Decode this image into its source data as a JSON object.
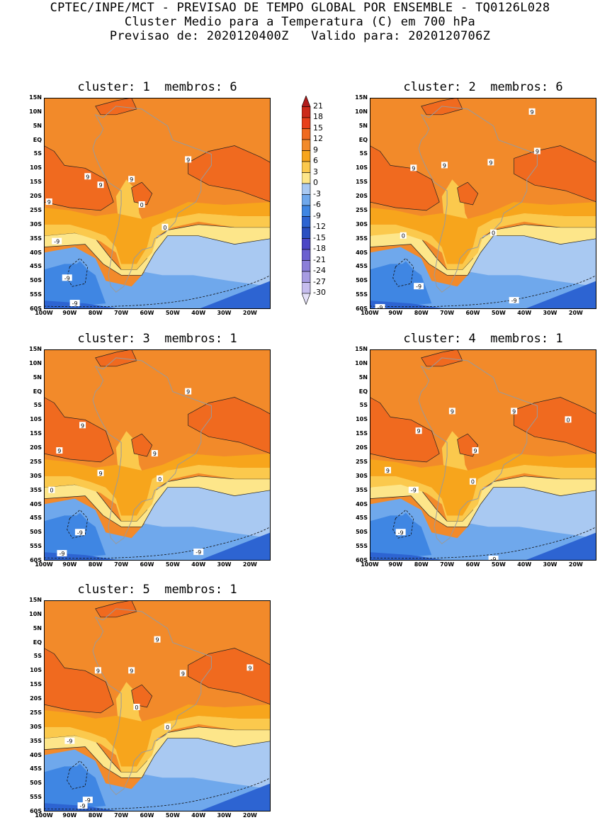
{
  "header": {
    "line1": "CPTEC/INPE/MCT - PREVISAO DE TEMPO GLOBAL POR ENSEMBLE - TQ0126L028",
    "line2": "Cluster Medio para a Temperatura (C) em 700 hPa",
    "line3": "Previsao de: 2020120400Z   Valido para: 2020120706Z"
  },
  "axes": {
    "lat_labels": [
      "15N",
      "10N",
      "5N",
      "EQ",
      "5S",
      "10S",
      "15S",
      "20S",
      "25S",
      "30S",
      "35S",
      "40S",
      "45S",
      "50S",
      "55S",
      "60S"
    ],
    "lon_labels": [
      "100W",
      "90W",
      "80W",
      "70W",
      "60W",
      "50W",
      "40W",
      "30W",
      "20W"
    ]
  },
  "colorbar": {
    "labels": [
      "21",
      "18",
      "15",
      "12",
      "9",
      "6",
      "3",
      "0",
      "-3",
      "-6",
      "-9",
      "-12",
      "-15",
      "-18",
      "-21",
      "-24",
      "-27",
      "-30"
    ],
    "colors": [
      "#b11c1c",
      "#cc2a1a",
      "#e8401a",
      "#f06a1f",
      "#f28a2a",
      "#f7a51c",
      "#fbc94d",
      "#fde68a",
      "#a9c9f2",
      "#6fa8ec",
      "#3f86e3",
      "#2d64d2",
      "#2a4fc2",
      "#4b46c6",
      "#6b5fd0",
      "#8b7ed9",
      "#a79ce2",
      "#c6bdee",
      "#e4e0f7"
    ]
  },
  "panels": [
    {
      "title": "cluster: 1  membros: 6",
      "labels": [
        "9",
        "9",
        "9",
        "9",
        "9",
        "0",
        "0",
        "-9",
        "-9",
        "-9"
      ]
    },
    {
      "title": "cluster: 2  membros: 6",
      "labels": [
        "9",
        "9",
        "9",
        "9",
        "9",
        "0",
        "0",
        "-9",
        "-9",
        "-9"
      ]
    },
    {
      "title": "cluster: 3  membros: 1",
      "labels": [
        "9",
        "9",
        "9",
        "9",
        "9",
        "0",
        "0",
        "-9",
        "-9",
        "-9"
      ]
    },
    {
      "title": "cluster: 4  membros: 1",
      "labels": [
        "9",
        "9",
        "9",
        "9",
        "9",
        "0",
        "0",
        "-9",
        "-9",
        "-9"
      ]
    },
    {
      "title": "cluster: 5  membros: 1",
      "labels": [
        "9",
        "9",
        "9",
        "9",
        "9",
        "0",
        "0",
        "-9",
        "-9",
        "-9"
      ]
    }
  ]
}
